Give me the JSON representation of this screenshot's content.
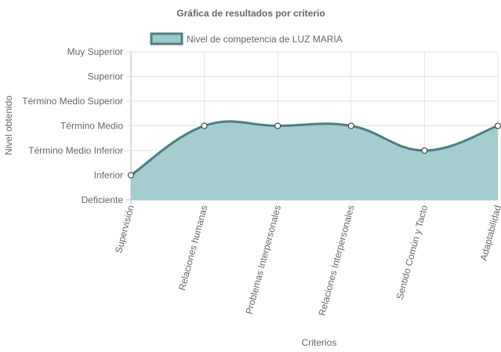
{
  "chart_data": {
    "type": "area",
    "title": "Gráfica de resultados por criterio",
    "x_label": "Criterios",
    "y_label": "Nivel obtenido",
    "categories": [
      "Supervisión",
      "Relaciones humanas",
      "Problemas Interpersonales",
      "Relaciones Interpersonales",
      "Sentido Común y Tacto",
      "Adaptabilidad"
    ],
    "series": [
      {
        "name": "Nivel de competencia de LUZ MARIA",
        "color": "#4f7d83",
        "fill": "#9fcacd",
        "values": [
          1,
          3,
          3,
          3,
          2,
          3
        ]
      }
    ],
    "ylim": [
      0,
      6
    ],
    "yticks": [
      {
        "value": 0,
        "label": "Deficiente"
      },
      {
        "value": 1,
        "label": "Inferior"
      },
      {
        "value": 2,
        "label": "Término Medio Inferior"
      },
      {
        "value": 3,
        "label": "Término Medio"
      },
      {
        "value": 4,
        "label": "Término Medio Superior"
      },
      {
        "value": 5,
        "label": "Superior"
      },
      {
        "value": 6,
        "label": "Muy Superior"
      }
    ],
    "grid": true,
    "legend": "top"
  }
}
